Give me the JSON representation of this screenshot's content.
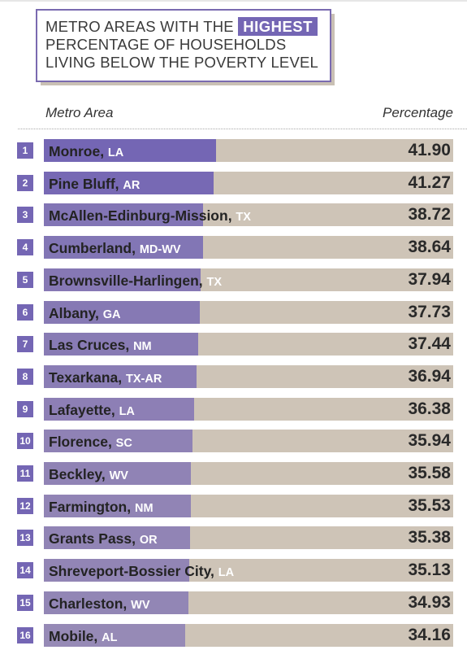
{
  "header": {
    "title_line1_pre": "METRO AREAS WITH THE",
    "title_highlight": "HIGHEST",
    "title_line2": "PERCENTAGE OF HOUSEHOLDS",
    "title_line3": "LIVING BELOW THE POVERTY LEVEL"
  },
  "columns": {
    "metro": "Metro Area",
    "percentage": "Percentage"
  },
  "colors": {
    "accent": "#7466b4",
    "track": "#cec4b7"
  },
  "chart_data": {
    "type": "bar",
    "categories": [
      "Monroe",
      "Pine Bluff",
      "McAllen-Edinburg-Mission",
      "Cumberland",
      "Brownsville-Harlingen",
      "Albany",
      "Las Cruces",
      "Texarkana",
      "Lafayette",
      "Florence",
      "Beckley",
      "Farmington",
      "Grants Pass",
      "Shreveport-Bossier City",
      "Charleston",
      "Mobile"
    ],
    "states": [
      "LA",
      "AR",
      "TX",
      "MD-WV",
      "TX",
      "GA",
      "NM",
      "TX-AR",
      "LA",
      "SC",
      "WV",
      "NM",
      "OR",
      "LA",
      "WV",
      "AL"
    ],
    "ranks": [
      "1",
      "2",
      "3",
      "4",
      "5",
      "6",
      "7",
      "8",
      "9",
      "10",
      "11",
      "12",
      "13",
      "14",
      "15",
      "16"
    ],
    "values": [
      41.9,
      41.27,
      38.72,
      38.64,
      37.94,
      37.73,
      37.44,
      36.94,
      36.38,
      35.94,
      35.58,
      35.53,
      35.38,
      35.13,
      34.93,
      34.16
    ],
    "labels": [
      "41.90",
      "41.27",
      "38.72",
      "38.64",
      "37.94",
      "37.73",
      "37.44",
      "36.94",
      "36.38",
      "35.94",
      "35.58",
      "35.53",
      "35.38",
      "35.13",
      "34.93",
      "34.16"
    ],
    "title": "METRO AREAS WITH THE HIGHEST PERCENTAGE OF HOUSEHOLDS LIVING BELOW THE POVERTY LEVEL",
    "xlabel": "Metro Area",
    "ylabel": "Percentage",
    "ylim": [
      0,
      100
    ]
  }
}
